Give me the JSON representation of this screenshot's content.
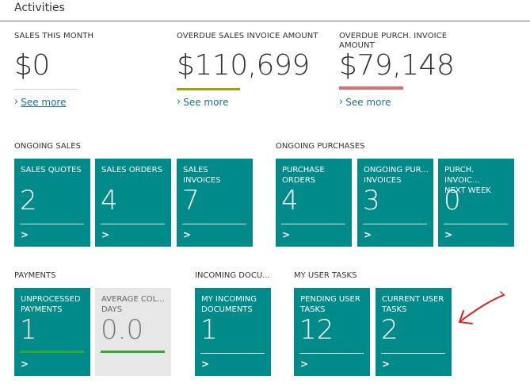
{
  "header": {
    "title": "Activities"
  },
  "kpis": [
    {
      "label": "SALES THIS MONTH",
      "value": "$0",
      "line_color": "#d8d8d8",
      "link": "See more"
    },
    {
      "label": "OVERDUE SALES INVOICE AMOUNT",
      "value": "$110,699",
      "line_color": "#a3a00f",
      "link": "See more"
    },
    {
      "label": "OVERDUE PURCH. INVOICE AMOUNT",
      "value": "$79,148",
      "line_color": "#e06c6c",
      "link": "See more"
    }
  ],
  "groups": {
    "ongoing_sales": "ONGOING SALES",
    "ongoing_purchases": "ONGOING PURCHASES",
    "payments": "PAYMENTS",
    "incoming_documents": "INCOMING DOCU...",
    "my_user_tasks": "MY USER TASKS"
  },
  "tiles": {
    "sales_quotes": {
      "label": "SALES QUOTES",
      "value": "2"
    },
    "sales_orders": {
      "label": "SALES ORDERS",
      "value": "4"
    },
    "sales_invoices": {
      "label": "SALES\nINVOICES",
      "value": "7"
    },
    "purchase_orders": {
      "label": "PURCHASE\nORDERS",
      "value": "4"
    },
    "ongoing_purch_invoices": {
      "label": "ONGOING PUR...\nINVOICES",
      "value": "3"
    },
    "purch_invoices_next_week": {
      "label": "PURCH. INVOIC...\nNEXT WEEK",
      "value": "0"
    },
    "unprocessed_payments": {
      "label": "UNPROCESSED\nPAYMENTS",
      "value": "1"
    },
    "average_collection_days": {
      "label": "AVERAGE COL...\nDAYS",
      "value": "0.0"
    },
    "my_incoming_documents": {
      "label": "MY INCOMING\nDOCUMENTS",
      "value": "1"
    },
    "pending_user_tasks": {
      "label": "PENDING USER\nTASKS",
      "value": "12"
    },
    "current_user_tasks": {
      "label": "CURRENT USER\nTASKS",
      "value": "2"
    }
  },
  "arrow_glyph": ">",
  "colors": {
    "tile": "#008a8a",
    "tile_grey": "#e7e7e8",
    "status_green": "#2ea82e",
    "annotation_red": "#e02020"
  }
}
